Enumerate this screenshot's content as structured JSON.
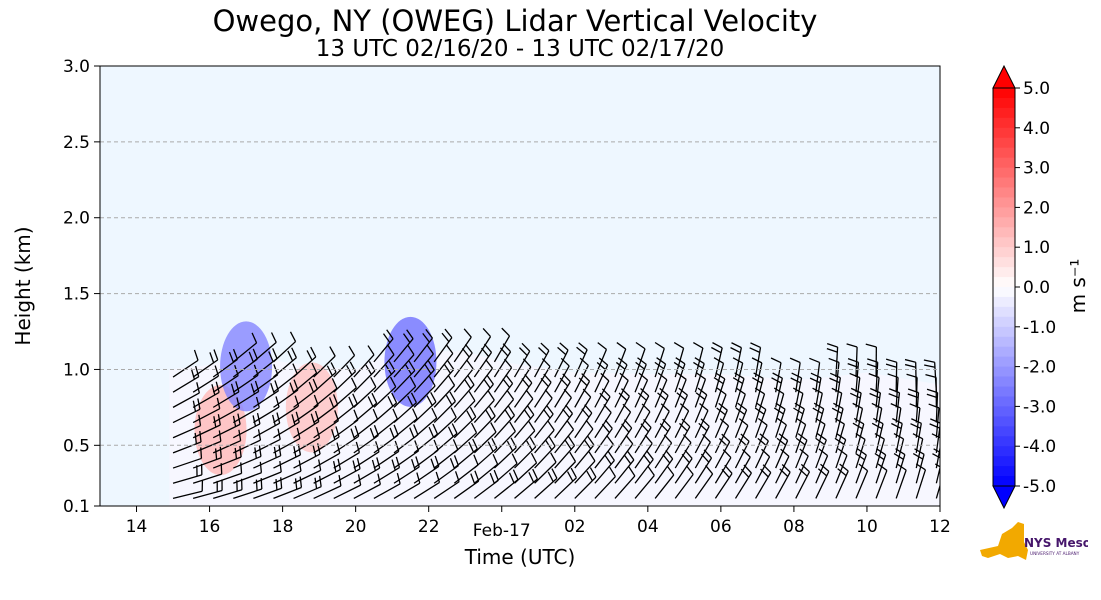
{
  "chart_data": {
    "type": "heatmap",
    "title": "Owego, NY (OWEG) Lidar Vertical Velocity",
    "subtitle": "13 UTC 02/16/20 - 13 UTC 02/17/20",
    "xlabel": "Time (UTC)",
    "ylabel": "Height (km)",
    "x_ticks": [
      "14",
      "16",
      "18",
      "20",
      "22",
      "Feb-17",
      "02",
      "04",
      "06",
      "08",
      "10",
      "12"
    ],
    "xlim_hours_utc_from_feb16_00": [
      13,
      36
    ],
    "y_ticks": [
      "0.1",
      "0.5",
      "1.0",
      "1.5",
      "2.0",
      "2.5",
      "3.0"
    ],
    "ylim": [
      0.1,
      3.0
    ],
    "grid": "horizontal dashed",
    "colorbar": {
      "label": "m s⁻¹",
      "ticks": [
        "5.0",
        "4.0",
        "3.0",
        "2.0",
        "1.0",
        "0.0",
        "-1.0",
        "-2.0",
        "-3.0",
        "-4.0",
        "-5.0"
      ],
      "range": [
        -5.0,
        5.0
      ],
      "colors": {
        "max": "#ff0000",
        "zero": "#ffffff",
        "min": "#0000ff"
      }
    },
    "data_top_km": [
      {
        "hour": 14.9,
        "top": 1.0
      },
      {
        "hour": 16.0,
        "top": 1.03
      },
      {
        "hour": 17.0,
        "top": 1.1
      },
      {
        "hour": 18.0,
        "top": 1.05
      },
      {
        "hour": 19.0,
        "top": 1.02
      },
      {
        "hour": 20.0,
        "top": 1.0
      },
      {
        "hour": 21.0,
        "top": 1.13
      },
      {
        "hour": 22.0,
        "top": 1.12
      },
      {
        "hour": 23.0,
        "top": 1.12
      },
      {
        "hour": 24.0,
        "top": 1.05
      },
      {
        "hour": 26.0,
        "top": 0.98
      },
      {
        "hour": 28.0,
        "top": 0.97
      },
      {
        "hour": 30.0,
        "top": 0.97
      },
      {
        "hour": 32.0,
        "top": 0.93
      },
      {
        "hour": 33.0,
        "top": 0.95
      },
      {
        "hour": 34.0,
        "top": 0.98
      },
      {
        "hour": 36.0,
        "top": 0.9
      }
    ],
    "notable_vertical_velocity": [
      {
        "hour": 16.3,
        "height_km": 0.6,
        "value": 0.7
      },
      {
        "hour": 18.8,
        "height_km": 0.75,
        "value": 0.6
      },
      {
        "hour": 17.0,
        "height_km": 1.02,
        "value": -1.2
      },
      {
        "hour": 21.5,
        "height_km": 1.05,
        "value": -1.4
      }
    ],
    "background_color": "#eef7ff"
  },
  "logo": {
    "text": "NYS Mesonet",
    "subtext": "UNIVERSITY AT ALBANY",
    "colors": {
      "map": "#f2a900",
      "text": "#46166b"
    }
  }
}
